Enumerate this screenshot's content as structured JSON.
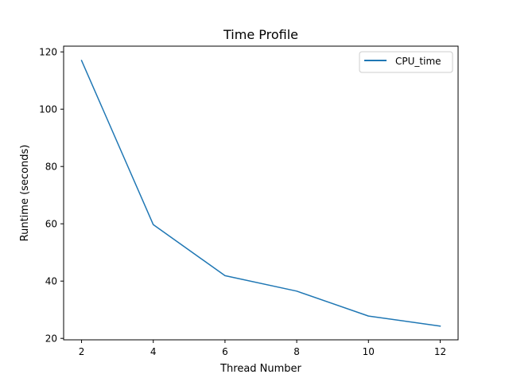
{
  "chart_data": {
    "type": "line",
    "title": "Time Profile",
    "xlabel": "Thread Number",
    "ylabel": "Runtime (seconds)",
    "x": [
      2,
      4,
      6,
      8,
      10,
      12
    ],
    "xticks": [
      2,
      4,
      6,
      8,
      10,
      12
    ],
    "yticks": [
      20,
      40,
      60,
      80,
      100,
      120
    ],
    "xlim": [
      1.5,
      12.5
    ],
    "ylim": [
      19.5,
      122
    ],
    "grid": false,
    "legend": "top-right",
    "series": [
      {
        "name": "CPU_time",
        "color": "#1f77b4",
        "values": [
          117,
          59.7,
          41.9,
          36.5,
          27.8,
          24.3
        ]
      }
    ]
  }
}
